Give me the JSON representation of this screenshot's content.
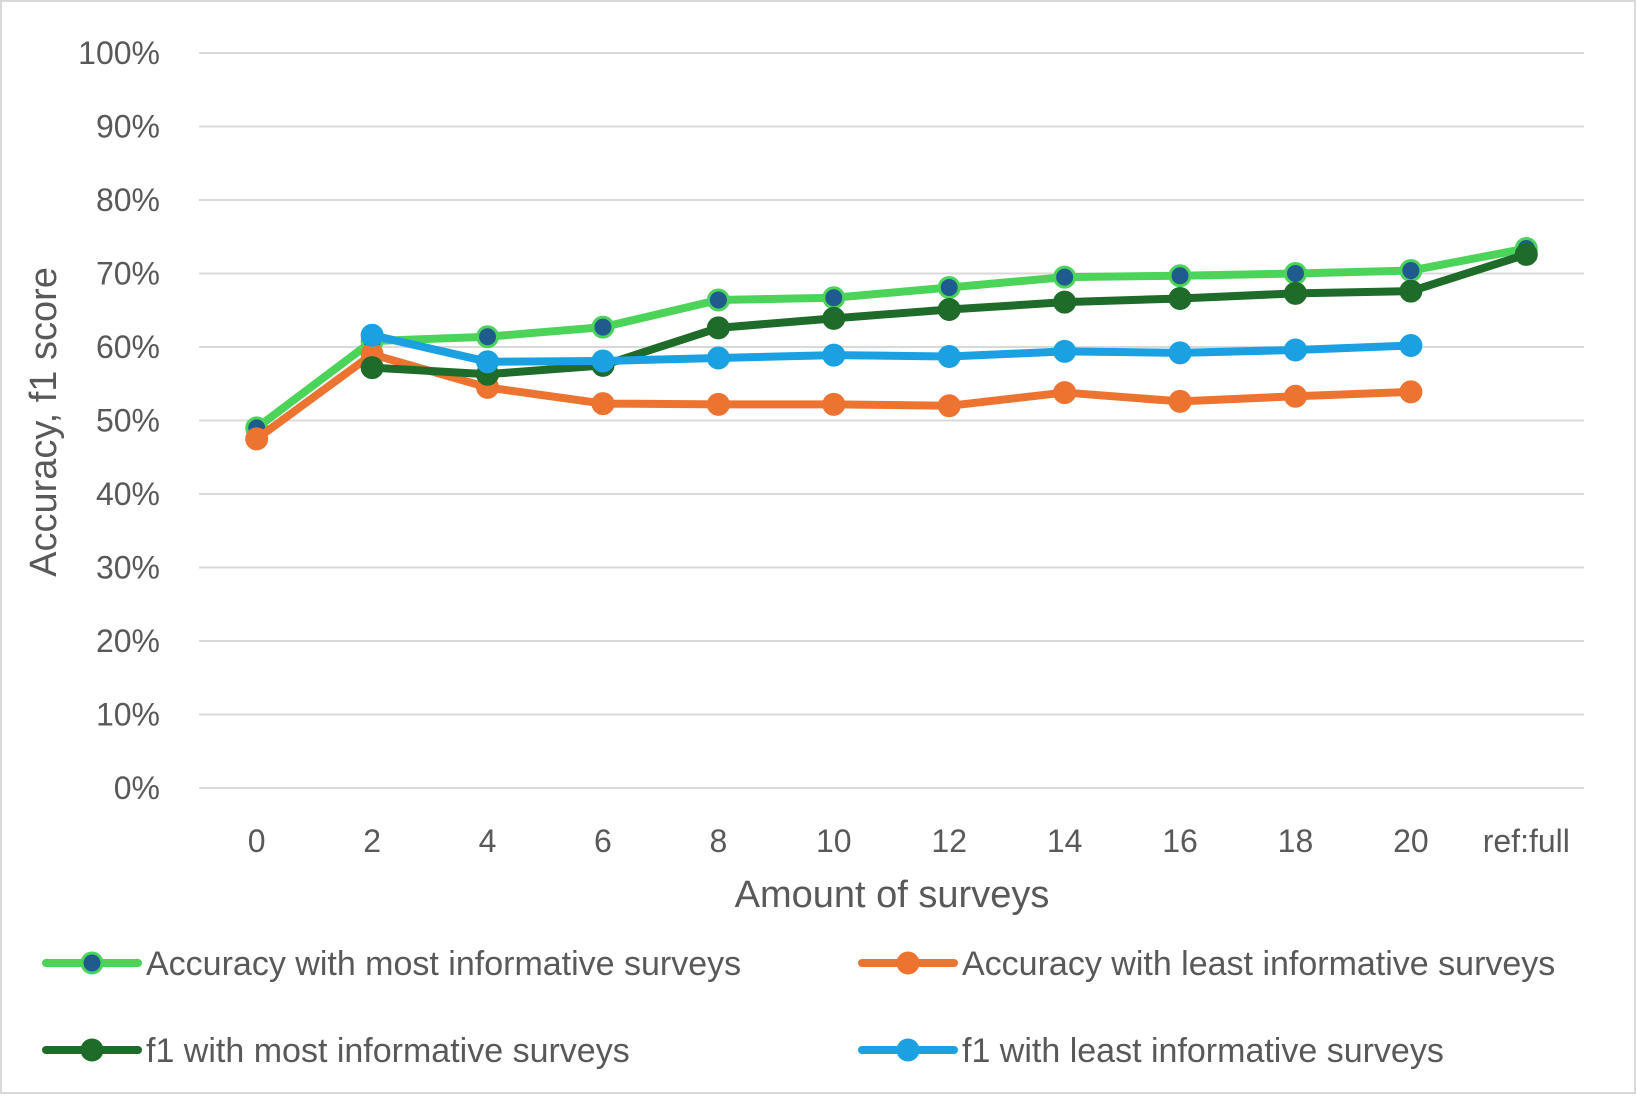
{
  "chart_data": {
    "type": "line",
    "title": "",
    "xlabel": "Amount of surveys",
    "ylabel": "Accuracy, f1 score",
    "categories": [
      "0",
      "2",
      "4",
      "6",
      "8",
      "10",
      "12",
      "14",
      "16",
      "18",
      "20",
      "ref:full"
    ],
    "ylim": [
      0,
      100
    ],
    "ytick_values": [
      0,
      10,
      20,
      30,
      40,
      50,
      60,
      70,
      80,
      90,
      100
    ],
    "ytick_labels": [
      "0%",
      "10%",
      "20%",
      "30%",
      "40%",
      "50%",
      "60%",
      "70%",
      "80%",
      "90%",
      "100%"
    ],
    "grid": true,
    "legend_position": "bottom",
    "series": [
      {
        "name": "Accuracy with most informative surveys",
        "color": "#4cd45a",
        "marker_fill": "#1f5b8c",
        "values": [
          49.0,
          60.8,
          61.4,
          62.7,
          66.4,
          66.7,
          68.1,
          69.5,
          69.7,
          70.0,
          70.4,
          73.4
        ]
      },
      {
        "name": "Accuracy with least informative surveys",
        "color": "#ed7331",
        "marker_fill": "#ed7331",
        "values": [
          47.5,
          59.0,
          54.5,
          52.3,
          52.2,
          52.2,
          52.0,
          53.8,
          52.6,
          53.3,
          53.9,
          null
        ]
      },
      {
        "name": "f1 with most informative surveys",
        "color": "#1e6b2a",
        "marker_fill": "#1e6b2a",
        "values": [
          null,
          57.2,
          56.3,
          57.5,
          62.6,
          63.9,
          65.1,
          66.1,
          66.6,
          67.3,
          67.6,
          72.6
        ]
      },
      {
        "name": "f1 with least informative surveys",
        "color": "#1ba1e2",
        "marker_fill": "#1ba1e2",
        "values": [
          null,
          61.6,
          58.0,
          58.1,
          58.5,
          58.9,
          58.7,
          59.4,
          59.2,
          59.6,
          60.2,
          null
        ]
      }
    ]
  }
}
